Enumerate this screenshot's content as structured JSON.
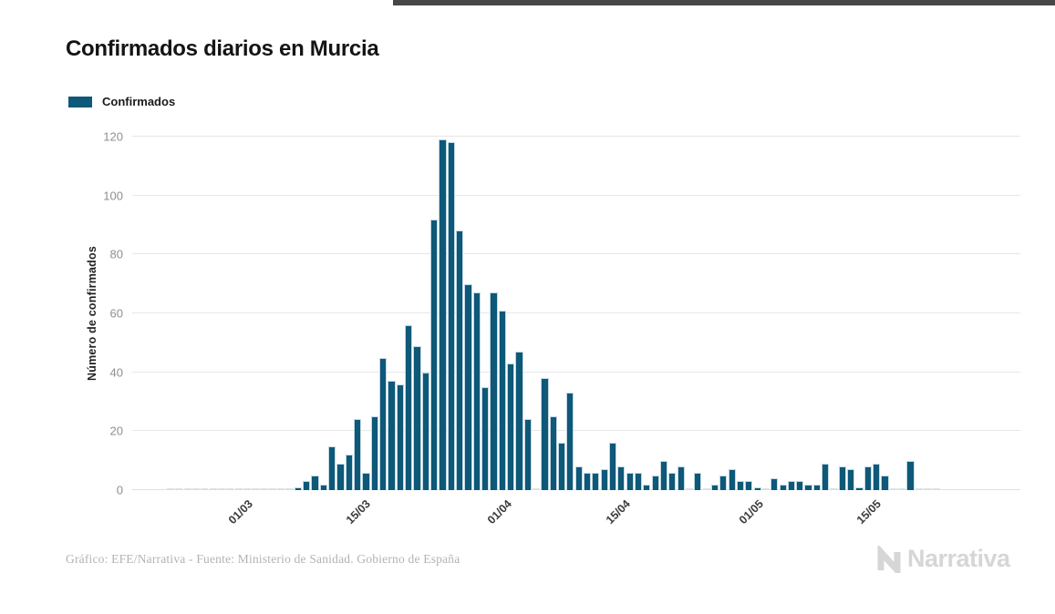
{
  "title": "Confirmados diarios en Murcia",
  "legend": {
    "label": "Confirmados",
    "color": "#0e5878"
  },
  "footer": {
    "credit": "Gráfico: EFE/Narrativa - Fuente: Ministerio de Sanidad. Gobierno de España",
    "logo_text": "Narrativa"
  },
  "chart_data": {
    "type": "bar",
    "title": "Confirmados diarios en Murcia",
    "series_name": "Confirmados",
    "xlabel": "",
    "ylabel": "Número de confirmados",
    "ylim": [
      0,
      120
    ],
    "yticks": [
      0,
      20,
      40,
      60,
      80,
      100,
      120
    ],
    "grid": "horizontal",
    "legend_position": "top-left",
    "bar_color": "#0e5878",
    "xticks": [
      {
        "label": "01/03",
        "pos": 0.139
      },
      {
        "label": "15/03",
        "pos": 0.284
      },
      {
        "label": "01/04",
        "pos": 0.456
      },
      {
        "label": "15/04",
        "pos": 0.602
      },
      {
        "label": "01/05",
        "pos": 0.764
      },
      {
        "label": "15/05",
        "pos": 0.909
      }
    ],
    "values": [
      null,
      null,
      null,
      null,
      0,
      0,
      0,
      0,
      0,
      0,
      0,
      0,
      0,
      0,
      0,
      0,
      0,
      0,
      0,
      1,
      3,
      5,
      2,
      15,
      9,
      12,
      24,
      6,
      25,
      45,
      37,
      36,
      56,
      49,
      40,
      92,
      119,
      118,
      88,
      70,
      67,
      35,
      67,
      61,
      43,
      47,
      24,
      0,
      38,
      25,
      16,
      33,
      8,
      6,
      6,
      7,
      16,
      8,
      6,
      6,
      2,
      5,
      10,
      6,
      8,
      0,
      6,
      0,
      2,
      5,
      7,
      3,
      3,
      1,
      0,
      4,
      2,
      3,
      3,
      2,
      2,
      9,
      0,
      8,
      7,
      1,
      8,
      9,
      5,
      0,
      0,
      10,
      0,
      0,
      0
    ]
  }
}
